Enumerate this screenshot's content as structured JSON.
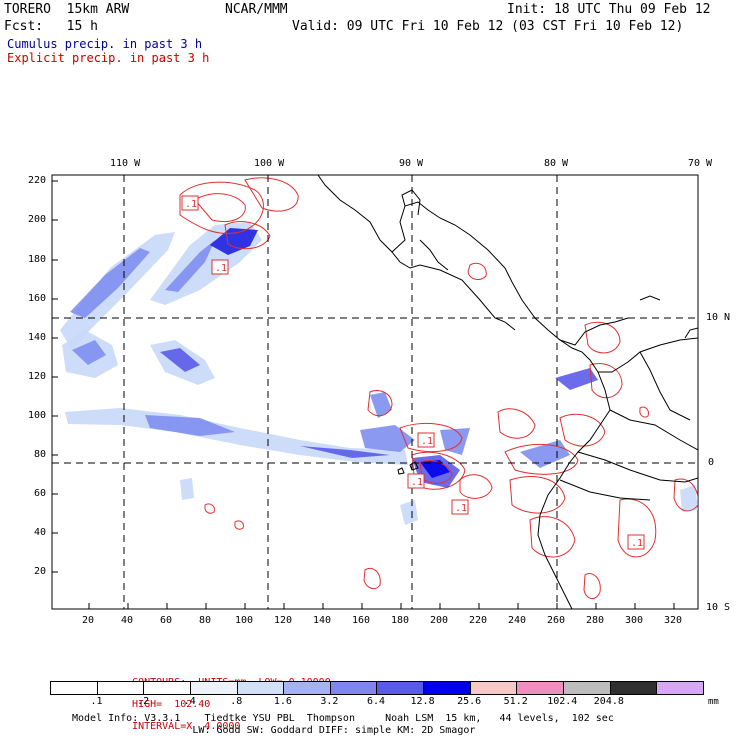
{
  "header": {
    "model": "TORERO  15km ARW",
    "org": "NCAR/MMM",
    "init": "Init: 18 UTC Thu 09 Feb 12",
    "fcst": "Fcst:   15 h",
    "valid": "Valid: 09 UTC Fri 10 Feb 12 (03 CST Fri 10 Feb 12)",
    "line_cumulus": "Cumulus precip. in past 3 h",
    "line_explicit": "Explicit precip. in past 3 h"
  },
  "colors": {
    "cumulus_text": "#000099",
    "explicit_text": "#cc0000",
    "coast": "#000000",
    "grid": "#000000",
    "precip_light": "#c8d8f8",
    "precip_mid": "#7f8ef0",
    "precip_heavy": "#2020e0",
    "contour": "#e03030"
  },
  "map": {
    "lon_labels_top": [
      "110 W",
      "100 W",
      "90 W",
      "80 W",
      "70 W"
    ],
    "lat_labels_right": [
      "10 N",
      "0",
      "10 S"
    ],
    "y_ticks_left": [
      "220",
      "200",
      "180",
      "160",
      "140",
      "120",
      "100",
      "80",
      "60",
      "40",
      "20"
    ],
    "x_ticks_bottom": [
      "20",
      "40",
      "60",
      "80",
      "100",
      "120",
      "140",
      "160",
      "180",
      "200",
      "220",
      "240",
      "260",
      "280",
      "300",
      "320"
    ],
    "contour_labels": [
      ".1",
      ".1",
      ".1",
      ".1",
      ".1",
      ".1"
    ]
  },
  "legend": {
    "title_contours": "CONTOURS:  UNITS=mm  LOW= 0.10000",
    "title_high": "HIGH=  102.40",
    "title_interval": "INTERVAL=X  4.0000",
    "bins": [
      {
        "label": ".1",
        "color": "#ffffff"
      },
      {
        "label": ".2",
        "color": "#ffffff"
      },
      {
        "label": ".4",
        "color": "#ffffff"
      },
      {
        "label": ".8",
        "color": "#eef2fb"
      },
      {
        "label": "1.6",
        "color": "#d3e1f8"
      },
      {
        "label": "3.2",
        "color": "#a5b3f2"
      },
      {
        "label": "6.4",
        "color": "#7f86ee"
      },
      {
        "label": "12.8",
        "color": "#5b5bea"
      },
      {
        "label": "25.6",
        "color": "#0000ee"
      },
      {
        "label": "51.2",
        "color": "#f7c8c8"
      },
      {
        "label": "102.4",
        "color": "#f08fbf"
      },
      {
        "label": "204.8",
        "color": "#bdbdbd"
      },
      {
        "label": "",
        "color": "#303030"
      },
      {
        "label": "",
        "color": "#d7a6f7"
      }
    ],
    "unit": "mm"
  },
  "footer": {
    "line1": "Model Info: V3.3.1    Tiedtke YSU PBL  Thompson     Noah LSM  15 km,   44 levels,  102 sec",
    "line2": "                    LW: Godd SW: Goddard DIFF: simple KM: 2D Smagor"
  }
}
